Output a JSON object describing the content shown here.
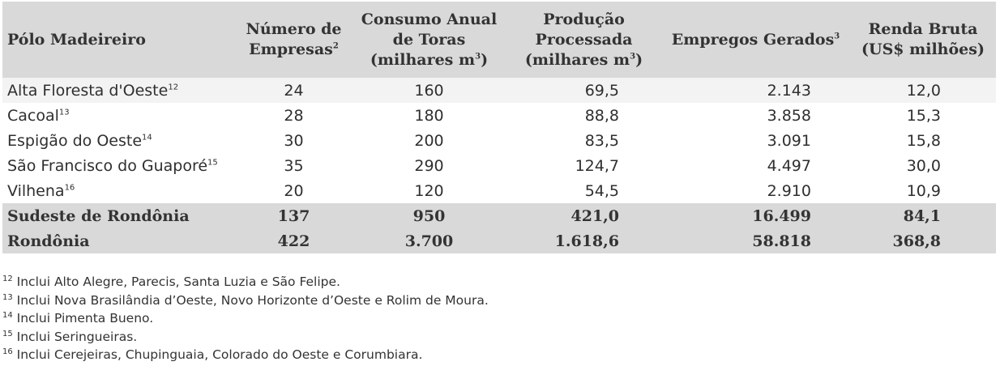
{
  "table": {
    "headers": [
      {
        "text": "Pólo Madeireiro",
        "sup": ""
      },
      {
        "line1": "Número de",
        "line2": "Empresas",
        "sup": "2"
      },
      {
        "line1": "Consumo Anual",
        "line2": "de Toras",
        "line3": "(milhares m",
        "sup": "3",
        "tail": ")"
      },
      {
        "line1": "Produção",
        "line2": "Processada",
        "line3": "(milhares m",
        "sup": "3",
        "tail": ")"
      },
      {
        "text": "Empregos Gerados",
        "sup": "3"
      },
      {
        "line1": "Renda Bruta",
        "line2": "(US$ milhões)"
      }
    ],
    "rows": [
      {
        "name": "Alta Floresta d'Oeste",
        "sup": "12",
        "empresas": "24",
        "consumo": "160",
        "producao": "69,5",
        "empregos": "2.143",
        "renda": "12,0"
      },
      {
        "name": "Cacoal",
        "sup": "13",
        "empresas": "28",
        "consumo": "180",
        "producao": "88,8",
        "empregos": "3.858",
        "renda": "15,3"
      },
      {
        "name": "Espigão do Oeste",
        "sup": "14",
        "empresas": "30",
        "consumo": "200",
        "producao": "83,5",
        "empregos": "3.091",
        "renda": "15,8"
      },
      {
        "name": "São Francisco do Guaporé",
        "sup": "15",
        "empresas": "35",
        "consumo": "290",
        "producao": "124,7",
        "empregos": "4.497",
        "renda": "30,0"
      },
      {
        "name": "Vilhena",
        "sup": "16",
        "empresas": "20",
        "consumo": "120",
        "producao": "54,5",
        "empregos": "2.910",
        "renda": "10,9"
      }
    ],
    "totals": [
      {
        "name": "Sudeste de Rondônia",
        "empresas": "137",
        "consumo": "950",
        "producao": "421,0",
        "empregos": "16.499",
        "renda": "84,1"
      },
      {
        "name": "Rondônia",
        "empresas": "422",
        "consumo": "3.700",
        "producao": "1.618,6",
        "empregos": "58.818",
        "renda": "368,8"
      }
    ]
  },
  "notes": [
    {
      "num": "12",
      "text": " Inclui Alto Alegre, Parecis, Santa Luzia e São Felipe."
    },
    {
      "num": "13",
      "text": " Inclui Nova Brasilândia d’Oeste, Novo Horizonte d’Oeste e Rolim de Moura."
    },
    {
      "num": "14",
      "text": " Inclui Pimenta Bueno."
    },
    {
      "num": "15",
      "text": " Inclui Seringueiras."
    },
    {
      "num": "16",
      "text": " Inclui Cerejeiras, Chupinguaia, Colorado do Oeste e Corumbiara."
    }
  ]
}
